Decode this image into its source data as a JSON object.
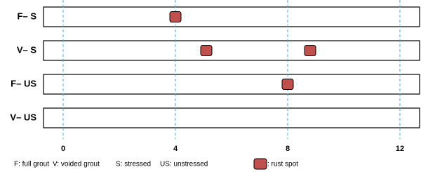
{
  "chart_data": {
    "type": "scatter",
    "categories": [
      "F– S",
      "V– S",
      "F– US",
      "V– US"
    ],
    "series": [
      {
        "name": ": rust spot",
        "color": "#c0504d",
        "x": [
          4,
          5.1,
          8.8,
          8
        ],
        "values": [
          "F– S",
          "V– S",
          "V– S",
          "F– US"
        ]
      }
    ],
    "xlim": [
      -0.7,
      12.7
    ],
    "xticks": [
      0,
      4,
      8,
      12
    ],
    "grid": true,
    "legend_notes": [
      "F: full grout",
      "V: voided grout",
      "S: stressed",
      "US: unstressed"
    ]
  }
}
